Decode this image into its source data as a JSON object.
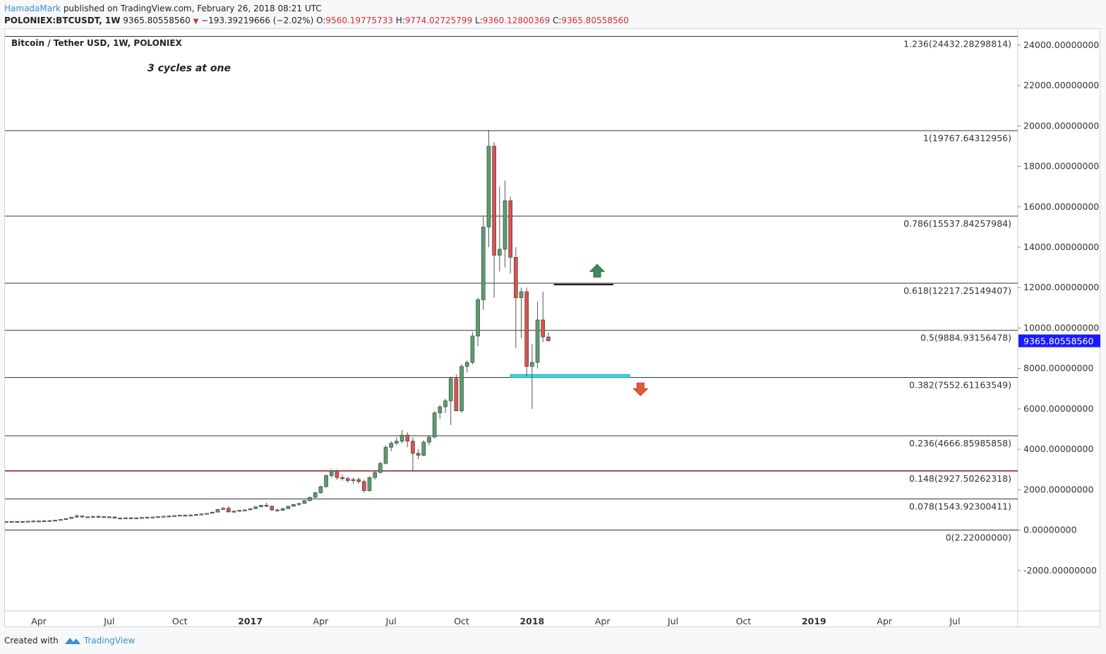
{
  "header": {
    "author": "HamadaMark",
    "published_text": "published on TradingView.com, February 26, 2018 08:21 UTC",
    "symbol": "POLONIEX:BTCUSDT, 1W",
    "last": "9365.80558560",
    "change": "−193.39219666 (−2.02%)",
    "o_label": "O:",
    "o_value": "9560.19775733",
    "h_label": "H:",
    "h_value": "9774.02725799",
    "l_label": "L:",
    "l_value": "9360.12800369",
    "c_label": "C:",
    "c_value": "9365.80558560"
  },
  "footer": {
    "created_with": "Created with",
    "brand": "TradingView"
  },
  "colors": {
    "up": "#5a9e6f",
    "down": "#d9534f",
    "price_label_bg": "#1a1aff",
    "support_zone": "#3fd4e0",
    "arrow_up": "#3e8a5c",
    "arrow_down": "#e05a3a",
    "fib_line": "#333333",
    "fib_line_0148": "#8b1a1a"
  },
  "chart_data": {
    "type": "candlestick",
    "title": "Bitcoin / Tether USD, 1W, POLONIEX",
    "annotation": "3 cycles at one",
    "ylim": [
      -4000,
      24800
    ],
    "y_ticks": [
      24000,
      22000,
      20000,
      18000,
      16000,
      14000,
      12000,
      10000,
      8000,
      6000,
      4000,
      2000,
      0,
      -2000
    ],
    "y_tick_labels": [
      "24000.00000000",
      "22000.00000000",
      "20000.00000000",
      "18000.00000000",
      "16000.00000000",
      "14000.00000000",
      "12000.00000000",
      "10000.00000000",
      "8000.00000000",
      "6000.00000000",
      "4000.00000000",
      "2000.00000000",
      "0.00000000",
      "-2000.00000000"
    ],
    "x_ticks": [
      {
        "label": "Apr",
        "week": 0,
        "bold": false
      },
      {
        "label": "Jul",
        "week": 13,
        "bold": false
      },
      {
        "label": "Oct",
        "week": 26,
        "bold": false
      },
      {
        "label": "2017",
        "week": 39,
        "bold": true
      },
      {
        "label": "Apr",
        "week": 52,
        "bold": false
      },
      {
        "label": "Jul",
        "week": 65,
        "bold": false
      },
      {
        "label": "Oct",
        "week": 78,
        "bold": false
      },
      {
        "label": "2018",
        "week": 91,
        "bold": true
      },
      {
        "label": "Apr",
        "week": 104,
        "bold": false
      },
      {
        "label": "Jul",
        "week": 117,
        "bold": false
      },
      {
        "label": "Oct",
        "week": 130,
        "bold": false
      },
      {
        "label": "2019",
        "week": 143,
        "bold": true
      },
      {
        "label": "Apr",
        "week": 156,
        "bold": false
      },
      {
        "label": "Jul",
        "week": 169,
        "bold": false
      }
    ],
    "week_range": [
      -6,
      179
    ],
    "last_price": 9365.8055856,
    "last_price_label": "9365.80558560",
    "fib_levels": [
      {
        "ratio": "1.236",
        "price": 24432.28298814,
        "label": "1.236(24432.28298814)"
      },
      {
        "ratio": "1",
        "price": 19767.64312956,
        "label": "1(19767.64312956)"
      },
      {
        "ratio": "0.786",
        "price": 15537.84257984,
        "label": "0.786(15537.84257984)"
      },
      {
        "ratio": "0.618",
        "price": 12217.25149407,
        "label": "0.618(12217.25149407)"
      },
      {
        "ratio": "0.5",
        "price": 9884.93156478,
        "label": "0.5(9884.93156478)"
      },
      {
        "ratio": "0.382",
        "price": 7552.61163549,
        "label": "0.382(7552.61163549)"
      },
      {
        "ratio": "0.236",
        "price": 4666.85985858,
        "label": "0.236(4666.85985858)"
      },
      {
        "ratio": "0.148",
        "price": 2927.50262318,
        "label": "0.148(2927.50262318)"
      },
      {
        "ratio": "0.078",
        "price": 1543.92300411,
        "label": "0.078(1543.92300411)"
      },
      {
        "ratio": "0",
        "price": 2.22,
        "label": "0(2.22000000)"
      }
    ],
    "resistance_line": {
      "price": 12150,
      "week_start": 95,
      "week_end": 106
    },
    "support_zone": {
      "price_top": 7700,
      "price_bottom": 7550,
      "week_start": 87,
      "week_end": 109
    },
    "arrow_up": {
      "week": 103,
      "price": 12800
    },
    "arrow_down": {
      "week": 111,
      "price": 7000
    },
    "candles": [
      [
        -6,
        420,
        430,
        410,
        425
      ],
      [
        -5,
        425,
        440,
        415,
        430
      ],
      [
        -4,
        430,
        445,
        420,
        418
      ],
      [
        -3,
        418,
        435,
        410,
        430
      ],
      [
        -2,
        430,
        450,
        425,
        440
      ],
      [
        -1,
        440,
        460,
        430,
        455
      ],
      [
        0,
        455,
        470,
        440,
        450
      ],
      [
        1,
        450,
        470,
        445,
        465
      ],
      [
        2,
        465,
        480,
        455,
        475
      ],
      [
        3,
        475,
        500,
        465,
        495
      ],
      [
        4,
        495,
        540,
        490,
        530
      ],
      [
        5,
        530,
        580,
        520,
        570
      ],
      [
        6,
        570,
        650,
        560,
        640
      ],
      [
        7,
        640,
        780,
        620,
        700
      ],
      [
        8,
        700,
        720,
        600,
        650
      ],
      [
        9,
        650,
        680,
        620,
        660
      ],
      [
        10,
        660,
        700,
        640,
        680
      ],
      [
        11,
        680,
        720,
        650,
        670
      ],
      [
        12,
        670,
        690,
        640,
        660
      ],
      [
        13,
        660,
        680,
        620,
        650
      ],
      [
        14,
        650,
        670,
        570,
        590
      ],
      [
        15,
        590,
        620,
        570,
        600
      ],
      [
        16,
        600,
        620,
        580,
        610
      ],
      [
        17,
        610,
        630,
        590,
        600
      ],
      [
        18,
        600,
        620,
        590,
        610
      ],
      [
        19,
        610,
        640,
        600,
        630
      ],
      [
        20,
        630,
        660,
        620,
        640
      ],
      [
        21,
        640,
        660,
        620,
        650
      ],
      [
        22,
        650,
        680,
        640,
        670
      ],
      [
        23,
        670,
        700,
        660,
        690
      ],
      [
        24,
        690,
        710,
        670,
        700
      ],
      [
        25,
        700,
        730,
        690,
        720
      ],
      [
        26,
        720,
        750,
        700,
        740
      ],
      [
        27,
        740,
        760,
        720,
        735
      ],
      [
        28,
        735,
        760,
        730,
        750
      ],
      [
        29,
        750,
        790,
        740,
        780
      ],
      [
        30,
        780,
        820,
        770,
        800
      ],
      [
        31,
        800,
        840,
        790,
        830
      ],
      [
        32,
        830,
        900,
        820,
        890
      ],
      [
        33,
        890,
        1050,
        880,
        1020
      ],
      [
        34,
        1020,
        1150,
        1000,
        1080
      ],
      [
        35,
        1080,
        1180,
        860,
        900
      ],
      [
        36,
        900,
        960,
        850,
        940
      ],
      [
        37,
        940,
        1000,
        920,
        980
      ],
      [
        38,
        980,
        1030,
        950,
        1000
      ],
      [
        39,
        1000,
        1080,
        980,
        1060
      ],
      [
        40,
        1060,
        1180,
        1040,
        1150
      ],
      [
        41,
        1150,
        1250,
        1130,
        1230
      ],
      [
        42,
        1230,
        1350,
        1150,
        1180
      ],
      [
        43,
        1180,
        1220,
        930,
        1000
      ],
      [
        44,
        1000,
        1050,
        920,
        980
      ],
      [
        45,
        980,
        1100,
        960,
        1060
      ],
      [
        46,
        1060,
        1200,
        1040,
        1180
      ],
      [
        47,
        1180,
        1300,
        1150,
        1270
      ],
      [
        48,
        1270,
        1350,
        1200,
        1320
      ],
      [
        49,
        1320,
        1480,
        1300,
        1460
      ],
      [
        50,
        1460,
        1650,
        1430,
        1620
      ],
      [
        51,
        1620,
        1900,
        1600,
        1850
      ],
      [
        52,
        1850,
        2200,
        1800,
        2150
      ],
      [
        53,
        2150,
        2750,
        2100,
        2700
      ],
      [
        54,
        2700,
        3000,
        2600,
        2950
      ],
      [
        55,
        2950,
        3000,
        2500,
        2600
      ],
      [
        56,
        2600,
        2750,
        2450,
        2550
      ],
      [
        57,
        2550,
        2650,
        2350,
        2450
      ],
      [
        58,
        2450,
        2600,
        2300,
        2500
      ],
      [
        59,
        2500,
        2600,
        2300,
        2400
      ],
      [
        60,
        2400,
        2500,
        1850,
        1950
      ],
      [
        61,
        1950,
        2650,
        1900,
        2600
      ],
      [
        62,
        2600,
        2900,
        2500,
        2850
      ],
      [
        63,
        2850,
        3400,
        2800,
        3300
      ],
      [
        64,
        3300,
        4200,
        3250,
        4100
      ],
      [
        65,
        4100,
        4400,
        3900,
        4300
      ],
      [
        66,
        4300,
        4600,
        4200,
        4400
      ],
      [
        67,
        4400,
        4950,
        4300,
        4700
      ],
      [
        68,
        4700,
        4850,
        4100,
        4400
      ],
      [
        69,
        4400,
        4600,
        2950,
        3800
      ],
      [
        70,
        3800,
        4000,
        3500,
        3700
      ],
      [
        71,
        3700,
        4450,
        3650,
        4350
      ],
      [
        72,
        4350,
        4700,
        4200,
        4600
      ],
      [
        73,
        4600,
        5900,
        4550,
        5800
      ],
      [
        74,
        5800,
        6200,
        5500,
        6100
      ],
      [
        75,
        6100,
        6500,
        5800,
        6400
      ],
      [
        76,
        6400,
        7600,
        5200,
        7500
      ],
      [
        77,
        7500,
        7700,
        6000,
        5900
      ],
      [
        78,
        5900,
        8200,
        5800,
        8100
      ],
      [
        79,
        8100,
        8400,
        7800,
        8300
      ],
      [
        80,
        8300,
        9800,
        8200,
        9600
      ],
      [
        81,
        9600,
        11500,
        9100,
        11400
      ],
      [
        82,
        11400,
        15500,
        10900,
        15000
      ],
      [
        83,
        15000,
        19800,
        14000,
        19000
      ],
      [
        84,
        19000,
        19200,
        11500,
        13600
      ],
      [
        85,
        13600,
        17000,
        12800,
        13900
      ],
      [
        86,
        13900,
        17300,
        13000,
        16300
      ],
      [
        87,
        16300,
        16500,
        12700,
        13500
      ],
      [
        88,
        13500,
        14000,
        9000,
        11500
      ],
      [
        89,
        11500,
        12000,
        9500,
        11800
      ],
      [
        90,
        11800,
        12000,
        7600,
        8100
      ],
      [
        91,
        8100,
        9200,
        6000,
        8300
      ],
      [
        92,
        8300,
        11300,
        8000,
        10400
      ],
      [
        93,
        10400,
        11800,
        9300,
        9560
      ],
      [
        94,
        9560,
        9774,
        9360,
        9366
      ]
    ]
  }
}
